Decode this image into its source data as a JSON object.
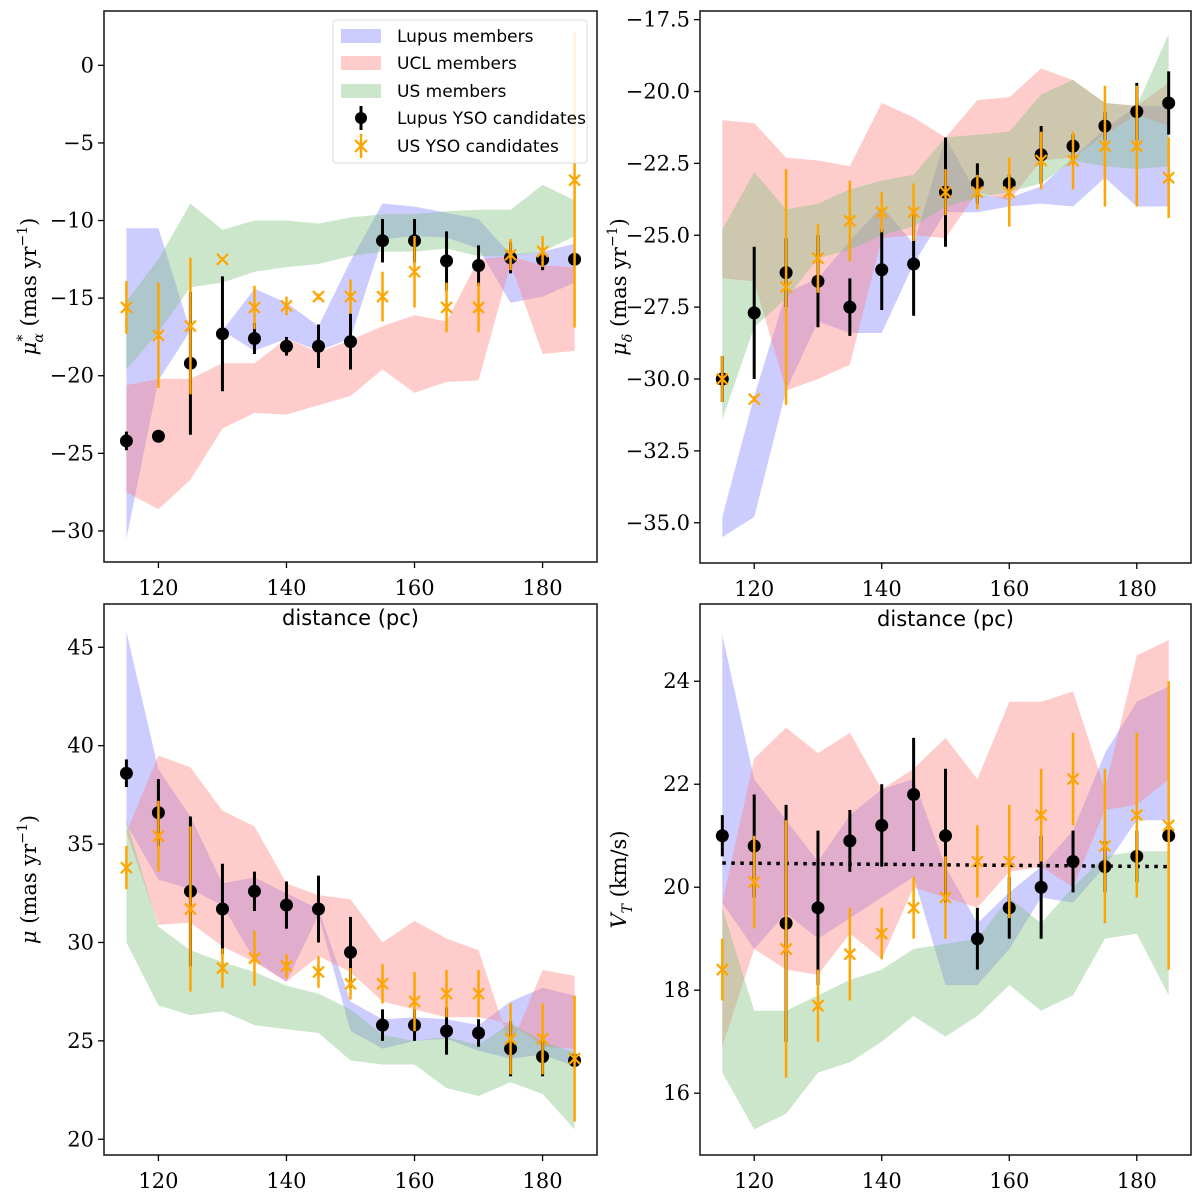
{
  "figure": {
    "legend": {
      "placement": "top-right of first panel",
      "entries": [
        {
          "label": "Lupus members",
          "kind": "band",
          "series": "lupus"
        },
        {
          "label": "UCL members",
          "kind": "band",
          "series": "ucl"
        },
        {
          "label": "US members",
          "kind": "band",
          "series": "us"
        },
        {
          "label": "Lupus YSO candidates",
          "kind": "errorbar-dot",
          "series": "lupus_yso"
        },
        {
          "label": "US YSO candidates",
          "kind": "errorbar-x",
          "series": "us_yso"
        }
      ]
    },
    "colors": {
      "lupus": "#8080ff",
      "ucl": "#ff8080",
      "us": "#80c080",
      "lupus_yso": "#000000",
      "us_yso": "#ffa500"
    }
  },
  "chart_data": [
    {
      "type": "line",
      "id": "pmra",
      "title": "",
      "xlabel": "distance (pc)",
      "ylabel": "μα* (mas yr⁻¹)",
      "ylabel_main": "μ",
      "ylabel_sub": "α",
      "ylabel_sup": "*",
      "ylabel_unit": "(mas yr",
      "ylabel_exp": "−1",
      "ylabel_close": ")",
      "xlim": [
        111.5,
        188.5
      ],
      "ylim": [
        -32,
        3.5
      ],
      "xticks": [
        120,
        140,
        160,
        180
      ],
      "xtick_labels": [
        "120",
        "140",
        "160",
        "180"
      ],
      "yticks": [
        0,
        -5,
        -10,
        -15,
        -20,
        -25,
        -30
      ],
      "ytick_labels": [
        "0",
        "−5",
        "−10",
        "−15",
        "−20",
        "−25",
        "−30"
      ],
      "legend": true,
      "x": [
        115,
        120,
        125,
        130,
        135,
        140,
        145,
        150,
        155,
        160,
        165,
        170,
        175,
        180,
        185
      ],
      "bands": {
        "lupus": {
          "low": [
            -30.5,
            -20.3,
            -17.1,
            -17.1,
            -18.4,
            -17.6,
            -18.4,
            -17.6,
            -11.2,
            -11.0,
            -11.1,
            -11.8,
            -15.3,
            -14.9,
            -14.0
          ],
          "high": [
            -10.5,
            -10.5,
            -17.1,
            -17.1,
            -14.4,
            -15.3,
            -16.8,
            -12.6,
            -8.9,
            -9.1,
            -9.5,
            -9.9,
            -12.2,
            -12.0,
            -11.5
          ]
        },
        "ucl": {
          "low": [
            -27.5,
            -28.6,
            -26.7,
            -23.4,
            -22.4,
            -22.5,
            -21.9,
            -21.3,
            -19.6,
            -21.1,
            -20.4,
            -20.3,
            -12.8,
            -18.6,
            -18.4
          ],
          "high": [
            -20.6,
            -20.2,
            -20.2,
            -19.2,
            -19.2,
            -17.6,
            -18.5,
            -17.7,
            -16.8,
            -16.1,
            -16.5,
            -12.5,
            -12.3,
            -12.9,
            -13.0
          ]
        },
        "us": {
          "low": [
            -19.6,
            -17.2,
            -14.3,
            -14.0,
            -13.3,
            -13.0,
            -12.8,
            -12.3,
            -12.0,
            -12.0,
            -11.8,
            -12.3,
            -12.3,
            -12.0,
            -11.0
          ],
          "high": [
            -15.2,
            -12.5,
            -8.9,
            -10.6,
            -10.0,
            -10.0,
            -10.2,
            -9.8,
            -9.6,
            -9.6,
            -9.4,
            -9.3,
            -9.3,
            -7.7,
            -8.7
          ]
        }
      },
      "lupus_yso": {
        "y": [
          -24.2,
          -23.9,
          -19.2,
          -17.3,
          -17.6,
          -18.1,
          -18.1,
          -17.8,
          -11.3,
          -11.3,
          -12.6,
          -12.9,
          -12.4,
          -12.5,
          -12.5
        ],
        "err": [
          0.6,
          0.1,
          4.6,
          3.7,
          1.0,
          0.6,
          1.4,
          1.8,
          1.4,
          1.4,
          1.9,
          1.3,
          1.0,
          0.7,
          0.0
        ]
      },
      "us_yso": {
        "y": [
          -15.6,
          -17.4,
          -16.8,
          -12.5,
          -15.6,
          -15.5,
          -14.9,
          -14.9,
          -14.9,
          -13.3,
          -15.6,
          -15.6,
          -12.2,
          -12.0,
          -7.4
        ],
        "err": [
          1.7,
          3.4,
          4.4,
          0.0,
          1.4,
          0.6,
          0.2,
          1.1,
          1.6,
          2.3,
          1.6,
          1.6,
          1.0,
          1.0,
          9.5
        ]
      },
      "hline": null
    },
    {
      "type": "line",
      "id": "pmdec",
      "title": "",
      "xlabel": "distance (pc)",
      "ylabel": "μδ (mas yr⁻¹)",
      "ylabel_main": "μ",
      "ylabel_sub": "δ",
      "ylabel_sup": "",
      "ylabel_unit": "(mas yr",
      "ylabel_exp": "−1",
      "ylabel_close": ")",
      "xlim": [
        111.5,
        188.5
      ],
      "ylim": [
        -36.4,
        -17.2
      ],
      "xticks": [
        120,
        140,
        160,
        180
      ],
      "xtick_labels": [
        "120",
        "140",
        "160",
        "180"
      ],
      "yticks": [
        -17.5,
        -20.0,
        -22.5,
        -25.0,
        -27.5,
        -30.0,
        -32.5,
        -35.0
      ],
      "ytick_labels": [
        "−17.5",
        "−20.0",
        "−22.5",
        "−25.0",
        "−27.5",
        "−30.0",
        "−32.5",
        "−35.0"
      ],
      "legend": false,
      "x": [
        115,
        120,
        125,
        130,
        135,
        140,
        145,
        150,
        155,
        160,
        165,
        170,
        175,
        180,
        185
      ],
      "bands": {
        "lupus": {
          "low": [
            -35.5,
            -34.8,
            -30.4,
            -28.0,
            -28.4,
            -28.4,
            -26.0,
            -24.2,
            -24.2,
            -24.0,
            -23.9,
            -24.0,
            -23.0,
            -24.0,
            -24.0
          ],
          "high": [
            -34.8,
            -30.6,
            -27.0,
            -26.5,
            -25.2,
            -24.0,
            -25.3,
            -21.6,
            -23.6,
            -23.7,
            -23.3,
            -22.3,
            -21.3,
            -20.5,
            -20.5
          ]
        },
        "ucl": {
          "low": [
            -26.5,
            -26.6,
            -30.4,
            -30.0,
            -29.5,
            -25.1,
            -25.0,
            -25.1,
            -23.5,
            -23.8,
            -22.4,
            -22.3,
            -21.5,
            -20.8,
            -21.2
          ],
          "high": [
            -21.0,
            -21.1,
            -22.3,
            -22.4,
            -22.6,
            -20.4,
            -20.9,
            -21.6,
            -20.3,
            -20.2,
            -19.2,
            -19.6,
            -20.4,
            -20.5,
            -19.7
          ]
        },
        "us": {
          "low": [
            -31.4,
            -28.2,
            -27.2,
            -25.8,
            -25.5,
            -25.0,
            -24.7,
            -24.0,
            -23.7,
            -23.5,
            -23.2,
            -22.4,
            -22.6,
            -22.7,
            -22.6
          ],
          "high": [
            -24.8,
            -22.8,
            -24.1,
            -23.9,
            -23.4,
            -23.1,
            -22.9,
            -21.6,
            -21.5,
            -21.4,
            -20.1,
            -19.6,
            -20.4,
            -20.5,
            -18.0
          ]
        }
      },
      "lupus_yso": {
        "y": [
          -30.0,
          -27.7,
          -26.3,
          -26.6,
          -27.5,
          -26.2,
          -26.0,
          -23.5,
          -23.2,
          -23.2,
          -22.2,
          -21.9,
          -21.2,
          -20.7,
          -20.4
        ],
        "err": [
          0.8,
          2.3,
          1.2,
          1.6,
          1.0,
          1.4,
          1.8,
          1.9,
          0.7,
          0.3,
          1.0,
          0.4,
          0.5,
          1.0,
          1.1
        ]
      },
      "us_yso": {
        "y": [
          -30.0,
          -30.7,
          -26.8,
          -25.8,
          -24.5,
          -24.2,
          -24.2,
          -23.5,
          -23.5,
          -23.5,
          -22.4,
          -22.4,
          -21.9,
          -21.9,
          -23.0
        ],
        "err": [
          0.8,
          0.1,
          4.1,
          1.2,
          1.4,
          0.7,
          1.0,
          0.8,
          0.6,
          1.2,
          1.0,
          1.0,
          2.1,
          2.1,
          1.4
        ]
      },
      "hline": null
    },
    {
      "type": "line",
      "id": "pm_total",
      "title": "",
      "xlabel": "distance (pc)",
      "ylabel": "μ (mas yr⁻¹)",
      "ylabel_main": "μ",
      "ylabel_sub": "",
      "ylabel_sup": "",
      "ylabel_unit": "(mas yr",
      "ylabel_exp": "−1",
      "ylabel_close": ")",
      "xlim": [
        111.5,
        188.5
      ],
      "ylim": [
        19.2,
        47.2
      ],
      "xticks": [
        120,
        140,
        160,
        180
      ],
      "xtick_labels": [
        "120",
        "140",
        "160",
        "180"
      ],
      "yticks": [
        20,
        25,
        30,
        35,
        40,
        45
      ],
      "ytick_labels": [
        "20",
        "25",
        "30",
        "35",
        "40",
        "45"
      ],
      "legend": false,
      "x": [
        115,
        120,
        125,
        130,
        135,
        140,
        145,
        150,
        155,
        160,
        165,
        170,
        175,
        180,
        185
      ],
      "bands": {
        "lupus": {
          "low": [
            36.0,
            33.2,
            32.7,
            31.9,
            29.1,
            28.0,
            31.4,
            25.5,
            24.6,
            25.0,
            25.1,
            24.5,
            24.1,
            24.3,
            23.7
          ],
          "high": [
            45.8,
            38.8,
            36.4,
            33.0,
            33.3,
            32.5,
            31.7,
            27.0,
            26.1,
            26.2,
            26.1,
            25.8,
            27.0,
            27.7,
            27.3
          ]
        },
        "ucl": {
          "low": [
            35.6,
            30.9,
            31.0,
            29.8,
            29.0,
            28.0,
            29.3,
            28.5,
            27.0,
            26.6,
            26.2,
            26.2,
            25.9,
            24.7,
            24.6
          ],
          "high": [
            35.6,
            39.5,
            38.9,
            36.7,
            35.9,
            33.0,
            32.4,
            32.2,
            30.0,
            31.1,
            30.2,
            29.6,
            24.7,
            28.6,
            28.3
          ]
        },
        "us": {
          "low": [
            30.0,
            26.8,
            26.3,
            26.5,
            25.8,
            25.6,
            25.4,
            24.0,
            23.8,
            23.8,
            22.6,
            22.2,
            22.9,
            22.3,
            20.5
          ],
          "high": [
            36.2,
            30.8,
            29.6,
            29.0,
            28.5,
            27.8,
            27.4,
            26.6,
            25.3,
            25.0,
            25.2,
            24.8,
            25.9,
            25.0,
            24.4
          ]
        }
      },
      "lupus_yso": {
        "y": [
          38.6,
          36.6,
          32.6,
          31.7,
          32.6,
          31.9,
          31.7,
          29.5,
          25.8,
          25.8,
          25.5,
          25.4,
          24.6,
          24.2,
          24.0
        ],
        "err": [
          0.7,
          1.7,
          3.8,
          2.3,
          1.0,
          1.2,
          1.7,
          1.8,
          0.8,
          0.8,
          1.2,
          0.7,
          1.4,
          1.0,
          0.0
        ]
      },
      "us_yso": {
        "y": [
          33.8,
          35.4,
          31.7,
          28.7,
          29.2,
          28.8,
          28.5,
          27.9,
          27.9,
          27.0,
          27.4,
          27.4,
          25.1,
          25.1,
          24.1
        ],
        "err": [
          1.1,
          1.8,
          4.2,
          1.0,
          1.4,
          0.6,
          0.8,
          0.8,
          1.0,
          1.5,
          1.2,
          1.2,
          1.8,
          1.8,
          3.2
        ]
      },
      "hline": null
    },
    {
      "type": "line",
      "id": "vt",
      "title": "",
      "xlabel": "distance (pc)",
      "ylabel": "VT(km/s)",
      "ylabel_main": "V",
      "ylabel_sub": "T",
      "ylabel_sup": "",
      "ylabel_unit": "(km/s",
      "ylabel_exp": "",
      "ylabel_close": ")",
      "xlim": [
        111.5,
        188.5
      ],
      "ylim": [
        14.8,
        25.5
      ],
      "xticks": [
        120,
        140,
        160,
        180
      ],
      "xtick_labels": [
        "120",
        "140",
        "160",
        "180"
      ],
      "yticks": [
        16,
        18,
        20,
        22,
        24
      ],
      "ytick_labels": [
        "16",
        "18",
        "20",
        "22",
        "24"
      ],
      "legend": false,
      "x": [
        115,
        120,
        125,
        130,
        135,
        140,
        145,
        150,
        155,
        160,
        165,
        170,
        175,
        180,
        185
      ],
      "bands": {
        "lupus": {
          "low": [
            19.7,
            18.8,
            19.5,
            19.0,
            19.4,
            19.8,
            20.2,
            18.1,
            18.1,
            18.8,
            19.8,
            19.7,
            20.4,
            21.3,
            21.3
          ],
          "high": [
            24.9,
            22.1,
            21.3,
            20.5,
            21.4,
            21.9,
            22.1,
            20.4,
            19.3,
            19.9,
            20.4,
            21.1,
            22.6,
            23.6,
            23.9
          ]
        },
        "ucl": {
          "low": [
            16.9,
            18.8,
            18.4,
            18.3,
            19.1,
            18.6,
            20.0,
            19.8,
            19.6,
            20.3,
            20.4,
            20.0,
            21.5,
            21.6,
            22.1
          ],
          "high": [
            19.7,
            22.5,
            23.1,
            22.6,
            23.0,
            21.9,
            22.3,
            22.9,
            22.1,
            23.6,
            23.6,
            23.8,
            21.9,
            24.5,
            24.8
          ]
        },
        "us": {
          "low": [
            16.4,
            15.3,
            15.6,
            16.4,
            16.6,
            17.0,
            17.5,
            17.1,
            17.5,
            18.1,
            17.6,
            17.9,
            19.0,
            19.1,
            17.9
          ]
        },
        "us_high": [
          19.6,
          17.6,
          17.6,
          17.9,
          18.2,
          18.4,
          18.8,
          18.9,
          19.0,
          19.8,
          19.3,
          20.0,
          20.6,
          20.7,
          20.7
        ]
      },
      "lupus_yso": {
        "y": [
          21.0,
          20.8,
          19.3,
          19.6,
          20.9,
          21.2,
          21.8,
          21.0,
          19.0,
          19.6,
          20.0,
          20.5,
          20.4,
          20.6,
          21.0
        ],
        "err": [
          0.4,
          1.0,
          2.3,
          1.5,
          0.6,
          0.8,
          1.1,
          1.3,
          0.6,
          0.6,
          1.0,
          0.6,
          0.5,
          0.5,
          0.0
        ]
      },
      "us_yso": {
        "y": [
          18.4,
          20.1,
          18.8,
          17.7,
          18.7,
          19.1,
          19.6,
          19.8,
          20.5,
          20.5,
          21.4,
          22.1,
          20.8,
          21.4,
          21.2
        ],
        "err": [
          0.6,
          0.9,
          2.5,
          0.7,
          0.9,
          0.5,
          0.6,
          0.8,
          0.7,
          1.1,
          0.9,
          0.9,
          1.5,
          1.6,
          2.8
        ]
      },
      "hline": {
        "x": [
          115,
          185
        ],
        "y": [
          20.47,
          20.4
        ],
        "style": "dotted"
      }
    }
  ]
}
